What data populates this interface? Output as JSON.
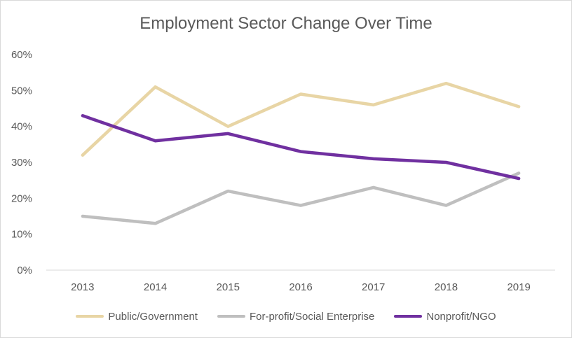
{
  "chart_data": {
    "type": "line",
    "title": "Employment Sector Change Over Time",
    "xlabel": "",
    "ylabel": "",
    "categories": [
      "2013",
      "2014",
      "2015",
      "2016",
      "2017",
      "2018",
      "2019"
    ],
    "ylim": [
      0,
      60
    ],
    "yticks": [
      "0%",
      "10%",
      "20%",
      "30%",
      "40%",
      "50%",
      "60%"
    ],
    "grid": false,
    "legend_position": "bottom",
    "series": [
      {
        "name": "Public/Government",
        "color": "#e8d5a5",
        "values": [
          32,
          51,
          40,
          49,
          46,
          52,
          45.5
        ]
      },
      {
        "name": "For-profit/Social Enterprise",
        "color": "#bfbfbf",
        "values": [
          15,
          13,
          22,
          18,
          23,
          18,
          27
        ]
      },
      {
        "name": "Nonprofit/NGO",
        "color": "#7030a0",
        "values": [
          43,
          36,
          38,
          33,
          31,
          30,
          25.5
        ]
      }
    ]
  }
}
